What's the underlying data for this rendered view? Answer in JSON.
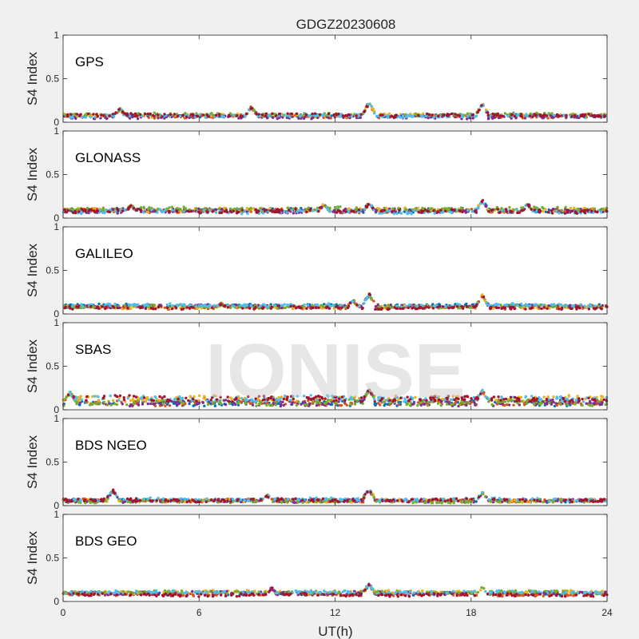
{
  "figure": {
    "title": "GDGZ20230608",
    "xlabel": "UT(h)",
    "ylabel": "S4 Index",
    "watermark": "IONISE",
    "background_color": "#f0f0f0",
    "axes_color": "#ffffff",
    "series_colors": [
      "#0072bd",
      "#d95319",
      "#edb120",
      "#7e2f8e",
      "#77ac30",
      "#4dbeee",
      "#a2142f"
    ]
  },
  "chart_data": [
    {
      "type": "scatter",
      "label": "GPS",
      "xlim": [
        0,
        24
      ],
      "ylim": [
        0,
        1
      ],
      "xticks": [
        0,
        6,
        12,
        18,
        24
      ],
      "yticks": [
        0,
        0.5,
        1
      ],
      "x_tick_labels_shown": false,
      "baseline": 0.07,
      "spread": 0.04,
      "bumps": [
        {
          "x": 13.5,
          "y": 0.22
        },
        {
          "x": 18.5,
          "y": 0.2
        },
        {
          "x": 2.5,
          "y": 0.15
        },
        {
          "x": 8.3,
          "y": 0.17
        }
      ]
    },
    {
      "type": "scatter",
      "label": "GLONASS",
      "xlim": [
        0,
        24
      ],
      "ylim": [
        0,
        1
      ],
      "xticks": [
        0,
        6,
        12,
        18,
        24
      ],
      "yticks": [
        0,
        0.5,
        1
      ],
      "x_tick_labels_shown": false,
      "baseline": 0.08,
      "spread": 0.05,
      "bumps": [
        {
          "x": 13.5,
          "y": 0.17
        },
        {
          "x": 18.5,
          "y": 0.2
        },
        {
          "x": 3,
          "y": 0.15
        },
        {
          "x": 11.5,
          "y": 0.16
        },
        {
          "x": 20.5,
          "y": 0.16
        }
      ]
    },
    {
      "type": "scatter",
      "label": "GALILEO",
      "xlim": [
        0,
        24
      ],
      "ylim": [
        0,
        1
      ],
      "xticks": [
        0,
        6,
        12,
        18,
        24
      ],
      "yticks": [
        0,
        0.5,
        1
      ],
      "x_tick_labels_shown": false,
      "baseline": 0.08,
      "spread": 0.04,
      "bumps": [
        {
          "x": 13.5,
          "y": 0.23
        },
        {
          "x": 18.5,
          "y": 0.21
        },
        {
          "x": 7,
          "y": 0.12
        },
        {
          "x": 12.8,
          "y": 0.16
        }
      ]
    },
    {
      "type": "scatter",
      "label": "SBAS",
      "xlim": [
        0,
        24
      ],
      "ylim": [
        0,
        1
      ],
      "xticks": [
        0,
        6,
        12,
        18,
        24
      ],
      "yticks": [
        0,
        0.5,
        1
      ],
      "x_tick_labels_shown": false,
      "baseline": 0.11,
      "spread": 0.07,
      "bumps": [
        {
          "x": 13.5,
          "y": 0.23
        },
        {
          "x": 18.5,
          "y": 0.22
        },
        {
          "x": 0.3,
          "y": 0.2
        }
      ]
    },
    {
      "type": "scatter",
      "label": "BDS NGEO",
      "xlim": [
        0,
        24
      ],
      "ylim": [
        0,
        1
      ],
      "xticks": [
        0,
        6,
        12,
        18,
        24
      ],
      "yticks": [
        0,
        0.5,
        1
      ],
      "x_tick_labels_shown": false,
      "baseline": 0.07,
      "spread": 0.04,
      "bumps": [
        {
          "x": 13.5,
          "y": 0.18
        },
        {
          "x": 18.5,
          "y": 0.15
        },
        {
          "x": 2.2,
          "y": 0.17
        },
        {
          "x": 9,
          "y": 0.12
        }
      ]
    },
    {
      "type": "scatter",
      "label": "BDS GEO",
      "xlim": [
        0,
        24
      ],
      "ylim": [
        0,
        1
      ],
      "xticks": [
        0,
        6,
        12,
        18,
        24
      ],
      "yticks": [
        0,
        0.5,
        1
      ],
      "x_tick_labels_shown": true,
      "baseline": 0.09,
      "spread": 0.04,
      "bumps": [
        {
          "x": 13.5,
          "y": 0.2
        },
        {
          "x": 18.5,
          "y": 0.16
        },
        {
          "x": 9.2,
          "y": 0.15
        }
      ]
    }
  ]
}
